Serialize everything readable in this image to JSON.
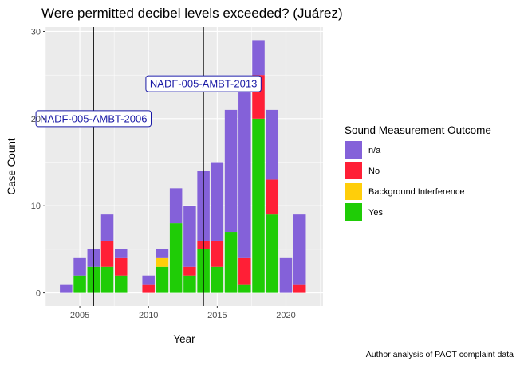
{
  "chart_data": {
    "type": "bar",
    "stacked": true,
    "title": "Were permitted decibel levels exceeded? (Juárez)",
    "xlabel": "Year",
    "ylabel": "Case Count",
    "caption": "Author analysis of PAOT complaint data",
    "xlim": [
      2002.5,
      2022.7
    ],
    "ylim": [
      -1.5,
      30.5
    ],
    "x_ticks": [
      2005,
      2010,
      2015,
      2020
    ],
    "y_ticks": [
      0,
      10,
      20,
      30
    ],
    "grid": true,
    "legend": {
      "title": "Sound Measurement Outcome",
      "position": "right"
    },
    "series_order_top_to_bottom": [
      "n/a",
      "No",
      "Background Interference",
      "Yes"
    ],
    "colors": {
      "n/a": "#8461d9",
      "No": "#ff1f36",
      "Background Interference": "#ffce0a",
      "Yes": "#1fcc06"
    },
    "x": [
      2004,
      2005,
      2006,
      2007,
      2008,
      2010,
      2011,
      2012,
      2013,
      2014,
      2015,
      2016,
      2017,
      2018,
      2019,
      2020,
      2021
    ],
    "series": [
      {
        "name": "Yes",
        "values": [
          0,
          2,
          3,
          3,
          2,
          0,
          3,
          8,
          2,
          5,
          3,
          7,
          1,
          20,
          9,
          0,
          0
        ]
      },
      {
        "name": "Background Interference",
        "values": [
          0,
          0,
          0,
          0,
          0,
          0,
          1,
          0,
          0,
          0,
          0,
          0,
          0,
          0,
          0,
          0,
          0
        ]
      },
      {
        "name": "No",
        "values": [
          0,
          0,
          0,
          3,
          2,
          1,
          0,
          0,
          1,
          1,
          3,
          0,
          3,
          5,
          4,
          0,
          1
        ]
      },
      {
        "name": "n/a",
        "values": [
          1,
          2,
          2,
          3,
          1,
          1,
          1,
          4,
          7,
          8,
          9,
          14,
          19,
          4,
          8,
          4,
          8
        ]
      }
    ],
    "vlines": [
      {
        "x": 2006,
        "label": "NADF-005-AMBT-2006",
        "label_y": 20
      },
      {
        "x": 2014,
        "label": "NADF-005-AMBT-2013",
        "label_y": 24
      }
    ]
  }
}
